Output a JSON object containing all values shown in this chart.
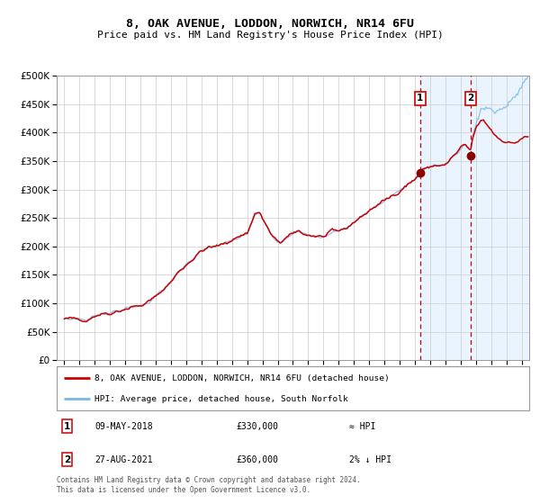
{
  "title": "8, OAK AVENUE, LODDON, NORWICH, NR14 6FU",
  "subtitle": "Price paid vs. HM Land Registry's House Price Index (HPI)",
  "legend_line1": "8, OAK AVENUE, LODDON, NORWICH, NR14 6FU (detached house)",
  "legend_line2": "HPI: Average price, detached house, South Norfolk",
  "annotation1_date": "09-MAY-2018",
  "annotation1_price": "£330,000",
  "annotation1_hpi": "≈ HPI",
  "annotation2_date": "27-AUG-2021",
  "annotation2_price": "£360,000",
  "annotation2_hpi": "2% ↓ HPI",
  "footer1": "Contains HM Land Registry data © Crown copyright and database right 2024.",
  "footer2": "This data is licensed under the Open Government Licence v3.0.",
  "purchase1_year": 2018.35,
  "purchase1_value": 330000,
  "purchase2_year": 2021.65,
  "purchase2_value": 360000,
  "hpi_line_color": "#7ab8e8",
  "red_line_color": "#cc0000",
  "red_dot_color": "#880000",
  "background_color": "#ffffff",
  "grid_color": "#cccccc",
  "shade_color": "#ddeeff",
  "dashed_color": "#cc0000",
  "ylim_min": 0,
  "ylim_max": 500000,
  "xlim_min": 1994.5,
  "xlim_max": 2025.5
}
